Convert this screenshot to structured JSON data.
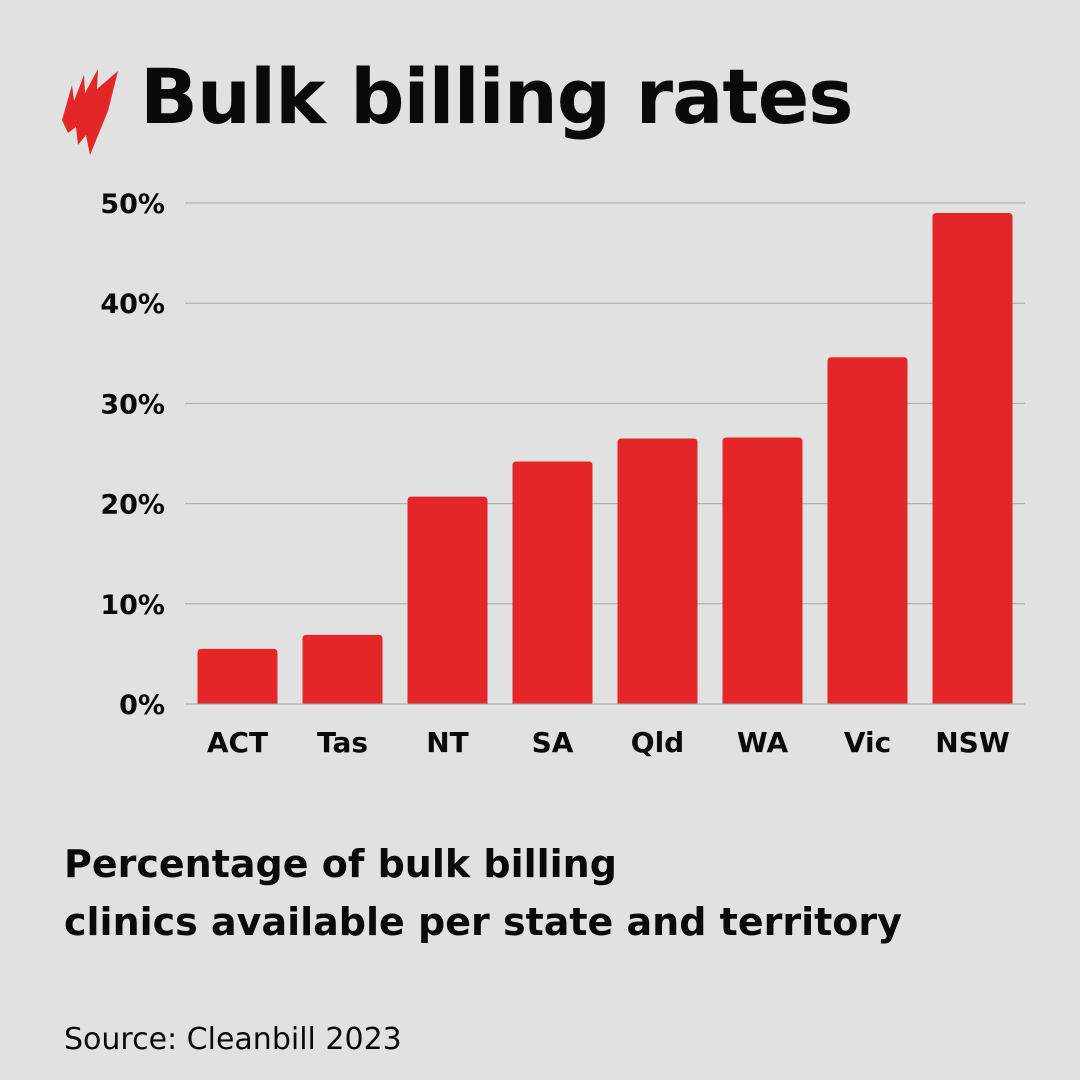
{
  "title": "Bulk billing rates",
  "subtitle_line1": "Percentage of bulk billing",
  "subtitle_line2": "clinics available per state and territory",
  "source": "Source: Cleanbill 2023",
  "colors": {
    "bar": "#e32728",
    "background": "#e1e1e1",
    "logo": "#e32728"
  },
  "logo_icon": "sbs-flame-logo",
  "chart_data": {
    "type": "bar",
    "categories": [
      "ACT",
      "Tas",
      "NT",
      "SA",
      "Qld",
      "WA",
      "Vic",
      "NSW"
    ],
    "values": [
      5.5,
      6.9,
      20.7,
      24.2,
      26.5,
      26.6,
      34.6,
      49.0
    ],
    "ylim": [
      0,
      50
    ],
    "yticks": [
      "0%",
      "10%",
      "20%",
      "30%",
      "40%",
      "50%"
    ],
    "grid": true,
    "xlabel": "",
    "ylabel": ""
  }
}
